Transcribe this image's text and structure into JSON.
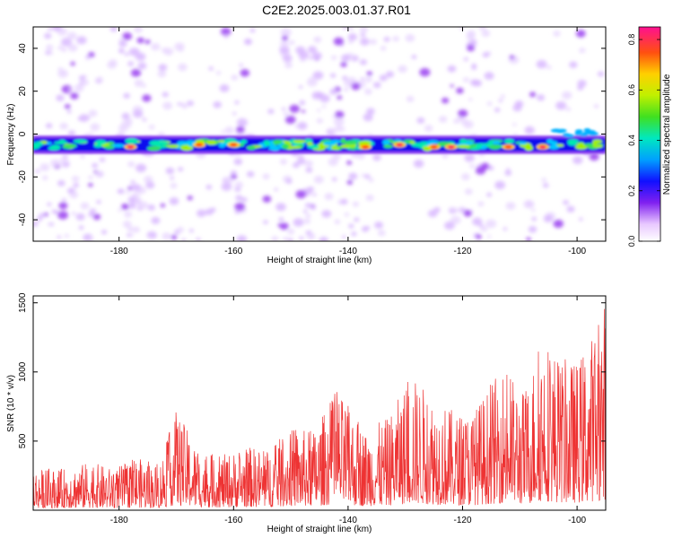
{
  "title": "C2E2.2025.003.01.37.R01",
  "colorbar": {
    "label": "Normalized spectral amplitude",
    "ticks": [
      "0.0",
      "0.2",
      "0.4",
      "0.6",
      "0.8"
    ],
    "tick_values": [
      0.0,
      0.2,
      0.4,
      0.6,
      0.8
    ],
    "range": [
      0,
      0.85
    ]
  },
  "chart_data": [
    {
      "type": "heatmap",
      "xlabel": "Height of straight line (km)",
      "ylabel": "Frequency (Hz)",
      "xlim": [
        -195,
        -95
      ],
      "ylim": [
        -50,
        50
      ],
      "xticks": [
        -180,
        -160,
        -140,
        -120,
        -100
      ],
      "xtick_labels": [
        "-180",
        "-160",
        "-140",
        "-120",
        "-100"
      ],
      "yticks": [
        -40,
        -20,
        0,
        20,
        40
      ],
      "ytick_labels": [
        "-40",
        "-20",
        "0",
        "20",
        "40"
      ],
      "band": {
        "center_hz": -5,
        "halfwidth_hz": 3
      },
      "hotspots": [
        {
          "x": -178,
          "y": -6,
          "value": 0.85
        },
        {
          "x": -166,
          "y": -5,
          "value": 0.8
        },
        {
          "x": -160,
          "y": -5,
          "value": 0.75
        },
        {
          "x": -137,
          "y": -6,
          "value": 0.7
        },
        {
          "x": -131,
          "y": -5,
          "value": 0.85
        },
        {
          "x": -125,
          "y": -6,
          "value": 0.75
        },
        {
          "x": -122,
          "y": -6,
          "value": 0.85
        },
        {
          "x": -112,
          "y": -6,
          "value": 0.7
        },
        {
          "x": -106,
          "y": -6,
          "value": 0.85
        }
      ]
    },
    {
      "type": "line",
      "xlabel": "Height of straight line (km)",
      "ylabel": "SNR (10 * v/v)",
      "xlim": [
        -195,
        -95
      ],
      "ylim": [
        0,
        1550
      ],
      "xticks": [
        -180,
        -160,
        -140,
        -120,
        -100
      ],
      "xtick_labels": [
        "-180",
        "-160",
        "-140",
        "-120",
        "-100"
      ],
      "yticks": [
        500,
        1000,
        1500
      ],
      "ytick_labels": [
        "500",
        "1000",
        "1500"
      ],
      "color": "#ee3333",
      "envelope": [
        {
          "x": -195,
          "y": 300
        },
        {
          "x": -190,
          "y": 300
        },
        {
          "x": -185,
          "y": 350
        },
        {
          "x": -181,
          "y": 300
        },
        {
          "x": -177,
          "y": 380
        },
        {
          "x": -173,
          "y": 330
        },
        {
          "x": -170,
          "y": 730
        },
        {
          "x": -166,
          "y": 420
        },
        {
          "x": -162,
          "y": 400
        },
        {
          "x": -157,
          "y": 460
        },
        {
          "x": -154,
          "y": 440
        },
        {
          "x": -150,
          "y": 590
        },
        {
          "x": -146,
          "y": 580
        },
        {
          "x": -142,
          "y": 870
        },
        {
          "x": -137,
          "y": 580
        },
        {
          "x": -133,
          "y": 670
        },
        {
          "x": -129,
          "y": 980
        },
        {
          "x": -125,
          "y": 830
        },
        {
          "x": -121,
          "y": 700
        },
        {
          "x": -118,
          "y": 730
        },
        {
          "x": -113,
          "y": 1040
        },
        {
          "x": -109,
          "y": 860
        },
        {
          "x": -106,
          "y": 1320
        },
        {
          "x": -103,
          "y": 1100
        },
        {
          "x": -100,
          "y": 1080
        },
        {
          "x": -97,
          "y": 1310
        },
        {
          "x": -95,
          "y": 1550
        }
      ]
    }
  ]
}
